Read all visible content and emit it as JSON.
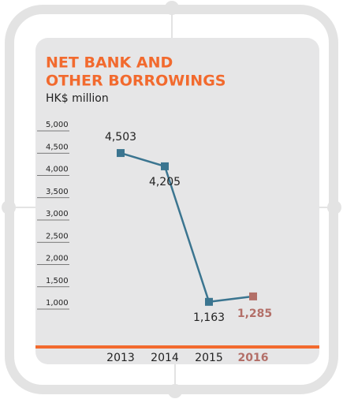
{
  "chart_data": {
    "type": "line",
    "title_lines": [
      "NET BANK AND",
      "OTHER BORROWINGS"
    ],
    "subtitle": "HK$ million",
    "categories": [
      "2013",
      "2014",
      "2015",
      "2016"
    ],
    "series": [
      {
        "name": "Net bank and other borrowings",
        "color": "#3b7590",
        "values": [
          4503,
          4205,
          1163,
          1285
        ],
        "value_labels": [
          "4,503",
          "4,205",
          "1,163",
          "1,285"
        ]
      }
    ],
    "highlight": {
      "index": 3,
      "color": "#b36f68"
    },
    "ylim": [
      1000,
      5000
    ],
    "yticks": [
      {
        "value": 5000,
        "label": "5,000"
      },
      {
        "value": 4500,
        "label": "4,500"
      },
      {
        "value": 4000,
        "label": "4,000"
      },
      {
        "value": 3500,
        "label": "3,500"
      },
      {
        "value": 3000,
        "label": "3,000"
      },
      {
        "value": 2500,
        "label": "2,500"
      },
      {
        "value": 2000,
        "label": "2,000"
      },
      {
        "value": 1500,
        "label": "1,500"
      },
      {
        "value": 1000,
        "label": "1,000"
      }
    ],
    "title_color": "#f26a2e"
  }
}
